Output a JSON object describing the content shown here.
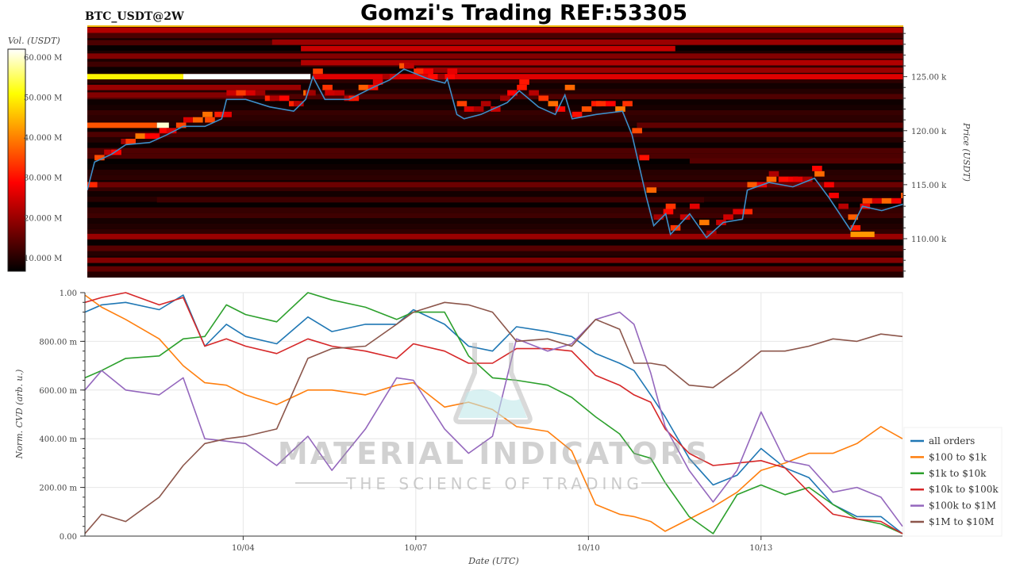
{
  "header": {
    "title": "Gomzi's Trading REF:53305",
    "subtitle": "BTC_USDT@2W"
  },
  "watermark": {
    "line1": "MATERIAL INDICATORS",
    "line2": "THE SCIENCE OF TRADING"
  },
  "chart_data": [
    {
      "type": "heatmap",
      "ylabel": "Price (USDT)",
      "colorbar_label": "Vol. (USDT)",
      "colormap": "hot",
      "colorbar_range": [
        6.6,
        62
      ],
      "colorbar_ticks": [
        {
          "value": 10,
          "label": "10.000 M"
        },
        {
          "value": 20,
          "label": "20.000 M"
        },
        {
          "value": 30,
          "label": "30.000 M"
        },
        {
          "value": 40,
          "label": "40.000 M"
        },
        {
          "value": 50,
          "label": "50.000 M"
        },
        {
          "value": 60,
          "label": "60.000 M"
        }
      ],
      "xlim": [
        "10/01 07:00",
        "10/15 11:00"
      ],
      "ylim": [
        106.4,
        129.6
      ],
      "yticks": [
        {
          "value": 110,
          "label": "110.00 k"
        },
        {
          "value": 115,
          "label": "115.00 k"
        },
        {
          "value": 120,
          "label": "120.00 k"
        },
        {
          "value": 125,
          "label": "125.00 k"
        }
      ],
      "price_line_color": "#3d8ec9",
      "price_series": {
        "t": [
          "10/01 07:00",
          "10/01 10:00",
          "10/01 17:00",
          "10/01 23:00",
          "10/02 09:00",
          "10/02 16:00",
          "10/02 23:00",
          "10/03 08:00",
          "10/03 15:00",
          "10/03 17:00",
          "10/04 01:00",
          "10/04 11:00",
          "10/04 21:00",
          "10/05 02:00",
          "10/05 05:00",
          "10/05 10:00",
          "10/05 20:00",
          "10/06 06:00",
          "10/06 13:00",
          "10/06 19:00",
          "10/07 05:00",
          "10/07 12:00",
          "10/07 13:00",
          "10/07 17:00",
          "10/07 20:00",
          "10/08 03:00",
          "10/08 14:00",
          "10/08 19:00",
          "10/09 03:00",
          "10/09 10:00",
          "10/09 14:00",
          "10/09 17:00",
          "10/10 03:00",
          "10/10 14:00",
          "10/10 18:00",
          "10/10 21:00",
          "10/11 00:00",
          "10/11 03:00",
          "10/11 08:00",
          "10/11 10:00",
          "10/11 18:00",
          "10/12 01:00",
          "10/12 08:00",
          "10/12 16:00",
          "10/12 18:00",
          "10/13 03:00",
          "10/13 13:00",
          "10/13 22:00",
          "10/14 04:00",
          "10/14 13:00",
          "10/14 18:00",
          "10/15 02:00",
          "10/15 11:00"
        ],
        "price_k": [
          114.5,
          117.1,
          117.8,
          118.7,
          118.9,
          119.6,
          120.4,
          120.4,
          121.1,
          122.9,
          122.9,
          122.2,
          121.8,
          122.9,
          125.0,
          122.9,
          122.9,
          124.0,
          124.7,
          125.7,
          124.8,
          124.4,
          124.8,
          121.5,
          121.1,
          121.5,
          122.6,
          123.7,
          122.2,
          121.5,
          123.3,
          121.1,
          121.5,
          121.8,
          119.6,
          116.7,
          113.8,
          111.2,
          112.3,
          110.4,
          112.3,
          110.1,
          111.5,
          111.8,
          114.5,
          115.2,
          114.8,
          115.6,
          113.8,
          110.8,
          113.0,
          112.6,
          113.2
        ]
      },
      "liquidity_bands": [
        {
          "price_k": 129.3,
          "start": "10/01 07:00",
          "end": "10/15 11:00",
          "vol_m": 22
        },
        {
          "price_k": 128.8,
          "start": "10/01 07:00",
          "end": "10/15 11:00",
          "vol_m": 13
        },
        {
          "price_k": 128.2,
          "start": "10/04 12:00",
          "end": "10/15 11:00",
          "vol_m": 20
        },
        {
          "price_k": 127.6,
          "start": "10/05 00:00",
          "end": "10/11 12:00",
          "vol_m": 24
        },
        {
          "price_k": 126.9,
          "start": "10/01 07:00",
          "end": "10/15 11:00",
          "vol_m": 18
        },
        {
          "price_k": 126.3,
          "start": "10/05 00:00",
          "end": "10/15 11:00",
          "vol_m": 22
        },
        {
          "price_k": 125.6,
          "start": "10/07 00:00",
          "end": "10/15 11:00",
          "vol_m": 20
        },
        {
          "price_k": 125.0,
          "start": "10/01 07:00",
          "end": "10/02 23:00",
          "vol_m": 50
        },
        {
          "price_k": 125.0,
          "start": "10/02 23:00",
          "end": "10/05 04:00",
          "vol_m": 62
        },
        {
          "price_k": 125.0,
          "start": "10/05 05:00",
          "end": "10/15 11:00",
          "vol_m": 26
        },
        {
          "price_k": 124.0,
          "start": "10/01 07:00",
          "end": "10/05 00:00",
          "vol_m": 20
        },
        {
          "price_k": 123.3,
          "start": "10/01 07:00",
          "end": "10/04 00:00",
          "vol_m": 18
        },
        {
          "price_k": 120.5,
          "start": "10/01 07:00",
          "end": "10/02 12:00",
          "vol_m": 36
        },
        {
          "price_k": 120.5,
          "start": "10/02 12:00",
          "end": "10/02 17:00",
          "vol_m": 60
        },
        {
          "price_k": 120.5,
          "start": "10/10 20:00",
          "end": "10/15 11:00",
          "vol_m": 15
        },
        {
          "price_k": 117.2,
          "start": "10/11 18:00",
          "end": "10/15 11:00",
          "vol_m": 14
        },
        {
          "price_k": 115.0,
          "start": "10/01 07:00",
          "end": "10/15 11:00",
          "vol_m": 16
        },
        {
          "price_k": 113.6,
          "start": "10/02 12:00",
          "end": "10/12 00:00",
          "vol_m": 12
        },
        {
          "price_k": 110.2,
          "start": "10/01 07:00",
          "end": "10/15 11:00",
          "vol_m": 20
        },
        {
          "price_k": 110.4,
          "start": "10/14 13:00",
          "end": "10/14 23:00",
          "vol_m": 42
        },
        {
          "price_k": 109.1,
          "start": "10/01 07:00",
          "end": "10/15 11:00",
          "vol_m": 14
        },
        {
          "price_k": 108.0,
          "start": "10/01 07:00",
          "end": "10/15 11:00",
          "vol_m": 18
        },
        {
          "price_k": 107.2,
          "start": "10/01 07:00",
          "end": "10/15 11:00",
          "vol_m": 15
        },
        {
          "price_k": 106.7,
          "start": "10/01 07:00",
          "end": "10/15 11:00",
          "vol_m": 10
        }
      ]
    },
    {
      "type": "line",
      "xlabel": "Date (UTC)",
      "ylabel": "Norm. CVD (arb. u.)",
      "xlim": [
        "10/01 06:00",
        "10/15 11:00"
      ],
      "ylim": [
        0,
        1
      ],
      "grid": true,
      "legend_placement": "right",
      "xticks": [
        "10/04",
        "10/07",
        "10/10",
        "10/13"
      ],
      "yticks": [
        {
          "value": 0,
          "label": "0.00"
        },
        {
          "value": 0.2,
          "label": "200.00 m"
        },
        {
          "value": 0.4,
          "label": "400.00 m"
        },
        {
          "value": 0.6,
          "label": "600.00 m"
        },
        {
          "value": 0.8,
          "label": "800.00 m"
        },
        {
          "value": 1.0,
          "label": "1.00"
        }
      ],
      "t": [
        "10/01 06:00",
        "10/01 13:00",
        "10/01 23:00",
        "10/02 13:00",
        "10/02 23:00",
        "10/03 08:00",
        "10/03 17:00",
        "10/04 01:00",
        "10/04 14:00",
        "10/05 03:00",
        "10/05 13:00",
        "10/06 03:00",
        "10/06 16:00",
        "10/06 23:00",
        "10/07 12:00",
        "10/07 22:00",
        "10/08 08:00",
        "10/08 18:00",
        "10/09 07:00",
        "10/09 17:00",
        "10/10 03:00",
        "10/10 13:00",
        "10/10 19:00",
        "10/11 02:00",
        "10/11 08:00",
        "10/11 18:00",
        "10/12 04:00",
        "10/12 14:00",
        "10/13 00:00",
        "10/13 10:00",
        "10/13 20:00",
        "10/14 06:00",
        "10/14 16:00",
        "10/15 02:00",
        "10/15 11:00"
      ],
      "series": [
        {
          "name": "all orders",
          "color": "#1f77b4",
          "values": [
            0.92,
            0.95,
            0.96,
            0.93,
            0.99,
            0.78,
            0.87,
            0.82,
            0.79,
            0.9,
            0.84,
            0.87,
            0.87,
            0.93,
            0.87,
            0.78,
            0.76,
            0.86,
            0.84,
            0.82,
            0.75,
            0.71,
            0.68,
            0.58,
            0.49,
            0.32,
            0.21,
            0.25,
            0.36,
            0.28,
            0.24,
            0.13,
            0.08,
            0.08,
            0.01
          ]
        },
        {
          "name": "$100 to $1k",
          "color": "#ff7f0e",
          "values": [
            0.99,
            0.94,
            0.89,
            0.81,
            0.7,
            0.63,
            0.62,
            0.58,
            0.54,
            0.6,
            0.6,
            0.58,
            0.62,
            0.63,
            0.53,
            0.55,
            0.52,
            0.45,
            0.43,
            0.35,
            0.13,
            0.09,
            0.08,
            0.06,
            0.02,
            0.07,
            0.12,
            0.18,
            0.27,
            0.3,
            0.34,
            0.34,
            0.38,
            0.45,
            0.4
          ]
        },
        {
          "name": "$1k to $10k",
          "color": "#2ca02c",
          "values": [
            0.65,
            0.68,
            0.73,
            0.74,
            0.81,
            0.82,
            0.95,
            0.91,
            0.88,
            1.0,
            0.97,
            0.94,
            0.89,
            0.92,
            0.92,
            0.74,
            0.65,
            0.64,
            0.62,
            0.57,
            0.49,
            0.42,
            0.34,
            0.32,
            0.22,
            0.08,
            0.01,
            0.17,
            0.21,
            0.17,
            0.2,
            0.13,
            0.07,
            0.05,
            0.01
          ]
        },
        {
          "name": "$10k to $100k",
          "color": "#d62728",
          "values": [
            0.96,
            0.98,
            1.0,
            0.95,
            0.98,
            0.78,
            0.81,
            0.78,
            0.75,
            0.81,
            0.78,
            0.76,
            0.73,
            0.79,
            0.76,
            0.71,
            0.71,
            0.77,
            0.77,
            0.76,
            0.66,
            0.62,
            0.58,
            0.55,
            0.44,
            0.34,
            0.29,
            0.3,
            0.31,
            0.28,
            0.18,
            0.09,
            0.07,
            0.06,
            0.01
          ]
        },
        {
          "name": "$100k to $1M",
          "color": "#9467bd",
          "values": [
            0.6,
            0.68,
            0.6,
            0.58,
            0.65,
            0.4,
            0.39,
            0.38,
            0.29,
            0.41,
            0.27,
            0.44,
            0.65,
            0.64,
            0.44,
            0.34,
            0.41,
            0.81,
            0.76,
            0.79,
            0.89,
            0.92,
            0.87,
            0.67,
            0.45,
            0.27,
            0.14,
            0.27,
            0.51,
            0.31,
            0.29,
            0.18,
            0.2,
            0.16,
            0.04
          ]
        },
        {
          "name": "$1M to $10M",
          "color": "#8c564b",
          "values": [
            0.01,
            0.09,
            0.06,
            0.16,
            0.29,
            0.38,
            0.4,
            0.41,
            0.44,
            0.73,
            0.77,
            0.78,
            0.87,
            0.92,
            0.96,
            0.95,
            0.92,
            0.8,
            0.81,
            0.78,
            0.89,
            0.85,
            0.71,
            0.71,
            0.7,
            0.62,
            0.61,
            0.68,
            0.76,
            0.76,
            0.78,
            0.81,
            0.8,
            0.83,
            0.82
          ]
        }
      ]
    }
  ]
}
